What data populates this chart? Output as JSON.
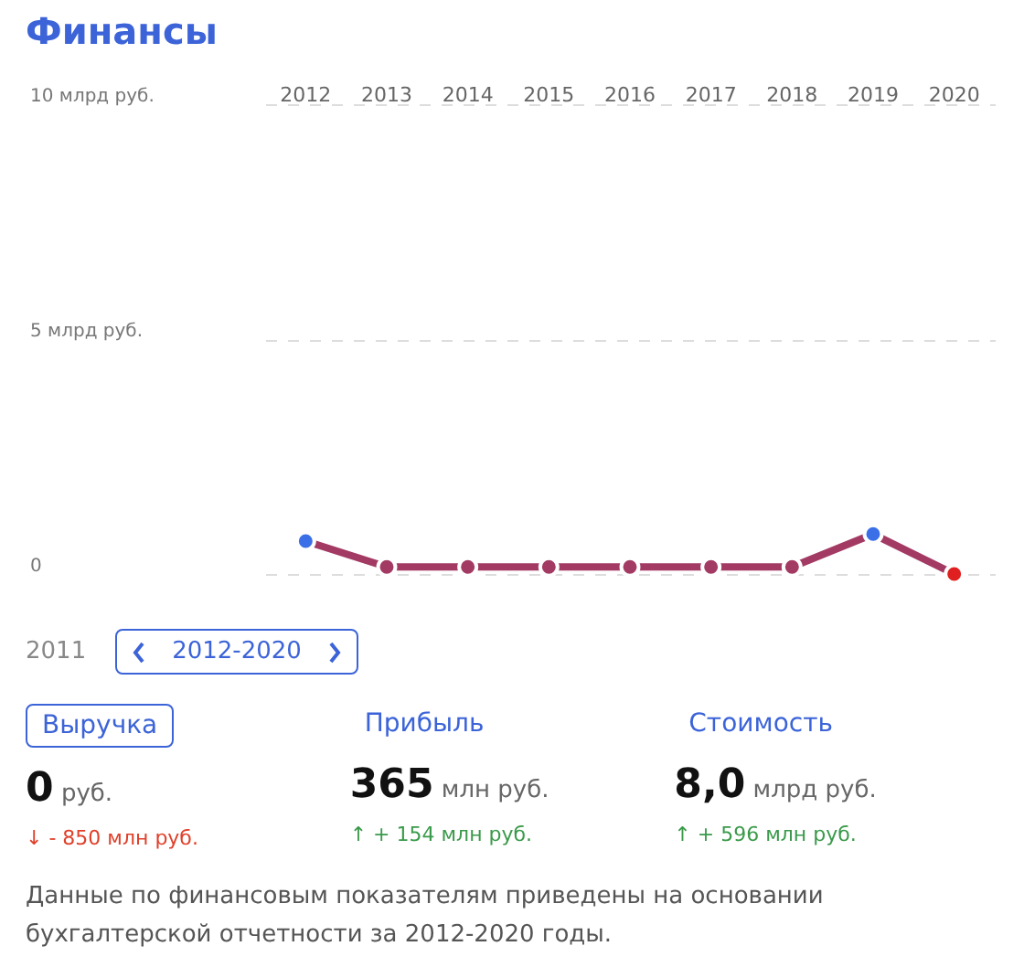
{
  "chart_data": {
    "type": "line",
    "title": "Финансы",
    "categories": [
      "2012",
      "2013",
      "2014",
      "2015",
      "2016",
      "2017",
      "2018",
      "2019",
      "2020"
    ],
    "series": [
      {
        "color": "#a33a63",
        "colors": [
          "#3b6fe8",
          "#a33a63",
          "#a33a63",
          "#a33a63",
          "#a33a63",
          "#a33a63",
          "#a33a63",
          "#3b6fe8",
          "#e02020"
        ],
        "values": [
          0.7,
          0.15,
          0.15,
          0.15,
          0.15,
          0.15,
          0.15,
          0.85,
          0
        ]
      }
    ],
    "ylim": [
      0,
      10
    ],
    "yticks": [
      {
        "value": 0,
        "label": "0"
      },
      {
        "value": 5,
        "label": "5 млрд руб."
      },
      {
        "value": 10,
        "label": "10 млрд руб."
      }
    ],
    "grid": "y",
    "marker": "circle",
    "line_style": "solid",
    "annotations": [
      "2011",
      "2012-2020",
      "Выручка",
      "Прибыль",
      "Стоимость",
      "0 руб.",
      "365 млн руб.",
      "8,0 млрд руб.",
      "↓ - 850 млн руб.",
      "↑ + 154 млн руб.",
      "↑ + 596 млн руб.",
      "Данные по финансовым показателям приведены на основании бухгалтерской отчетности за 2012-2020 годы."
    ]
  }
}
